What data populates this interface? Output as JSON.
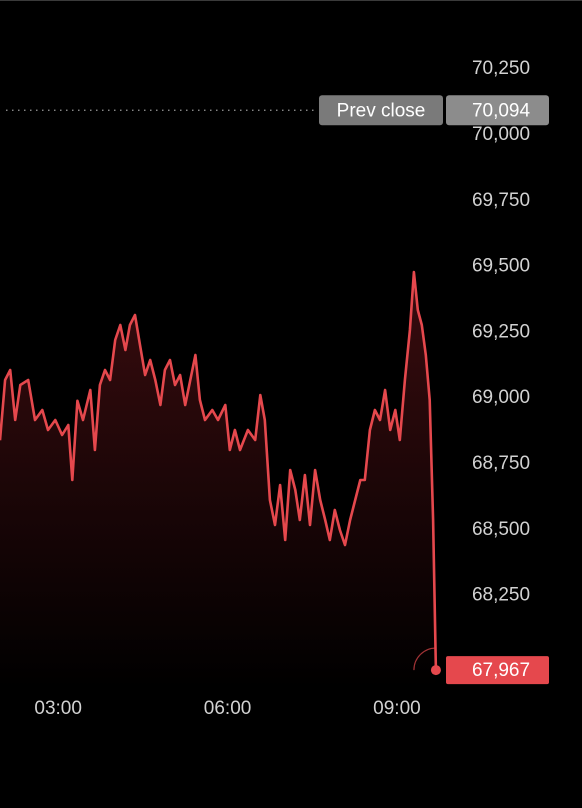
{
  "chart_data": {
    "type": "line",
    "x": [
      1.97,
      2.06,
      2.15,
      2.24,
      2.33,
      2.47,
      2.59,
      2.72,
      2.82,
      2.95,
      3.07,
      3.18,
      3.25,
      3.34,
      3.44,
      3.57,
      3.65,
      3.74,
      3.83,
      3.92,
      4.01,
      4.1,
      4.19,
      4.27,
      4.36,
      4.45,
      4.54,
      4.63,
      4.72,
      4.81,
      4.89,
      4.98,
      5.07,
      5.16,
      5.25,
      5.34,
      5.43,
      5.51,
      5.6,
      5.73,
      5.83,
      5.96,
      6.04,
      6.13,
      6.22,
      6.36,
      6.49,
      6.58,
      6.66,
      6.75,
      6.84,
      6.93,
      7.02,
      7.11,
      7.2,
      7.28,
      7.37,
      7.46,
      7.55,
      7.64,
      7.73,
      7.81,
      7.9,
      7.99,
      8.08,
      8.17,
      8.26,
      8.35,
      8.43,
      8.52,
      8.61,
      8.7,
      8.79,
      8.88,
      8.97,
      9.05,
      9.14,
      9.23,
      9.3,
      9.37,
      9.44,
      9.51,
      9.58,
      9.64,
      9.69
    ],
    "series": [
      {
        "color": "#e5484d",
        "values": [
          68840,
          69069,
          69107,
          68917,
          69050,
          69069,
          68917,
          68955,
          68879,
          68917,
          68860,
          68898,
          68689,
          68990,
          68917,
          69031,
          68803,
          69050,
          69107,
          69069,
          69221,
          69278,
          69183,
          69278,
          69316,
          69202,
          69088,
          69145,
          69069,
          68974,
          69107,
          69145,
          69050,
          69088,
          68974,
          69069,
          69164,
          68993,
          68917,
          68955,
          68917,
          68974,
          68803,
          68879,
          68803,
          68879,
          68841,
          69012,
          68917,
          68613,
          68518,
          68670,
          68461,
          68727,
          68651,
          68537,
          68708,
          68518,
          68727,
          68613,
          68537,
          68461,
          68575,
          68499,
          68442,
          68537,
          68613,
          68689,
          68689,
          68879,
          68955,
          68917,
          69031,
          68879,
          68955,
          68841,
          69069,
          69259,
          69479,
          69335,
          69278,
          69164,
          68993,
          68537,
          67967
        ]
      }
    ],
    "xlim": [
      1.97,
      9.78
    ],
    "xticks": [
      {
        "value": 3,
        "label": "03:00"
      },
      {
        "value": 6,
        "label": "06:00"
      },
      {
        "value": 9,
        "label": "09:00"
      }
    ],
    "ylim": [
      67900,
      70500
    ],
    "yticks": [
      {
        "value": 68250,
        "label": "68,250"
      },
      {
        "value": 68500,
        "label": "68,500"
      },
      {
        "value": 68750,
        "label": "68,750"
      },
      {
        "value": 69000,
        "label": "69,000"
      },
      {
        "value": 69250,
        "label": "69,250"
      },
      {
        "value": 69500,
        "label": "69,500"
      },
      {
        "value": 69750,
        "label": "69,750"
      },
      {
        "value": 70000,
        "label": "70,000"
      },
      {
        "value": 70250,
        "label": "70,250"
      }
    ],
    "prev_close": {
      "label": "Prev close",
      "value": 70094,
      "value_label": "70,094"
    },
    "last_price": {
      "value": 67967,
      "value_label": "67,967"
    }
  }
}
